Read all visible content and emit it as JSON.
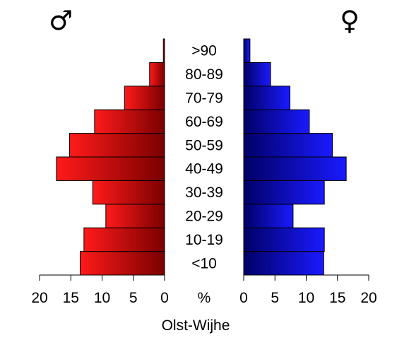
{
  "chart_data": {
    "type": "bar",
    "orientation": "horizontal-population-pyramid",
    "title": "",
    "xlabel": "Olst-Wijhe",
    "axis_unit_label": "%",
    "left_symbol": "♂",
    "right_symbol": "♀",
    "categories": [
      "<10",
      "10-19",
      "20-29",
      "30-39",
      "40-49",
      "50-59",
      "60-69",
      "70-79",
      "80-89",
      ">90"
    ],
    "series": [
      {
        "side": "left",
        "values": [
          13.5,
          12.9,
          9.4,
          11.5,
          17.3,
          15.2,
          11.2,
          6.4,
          2.4,
          0.2
        ],
        "color_light": "#ff1a1a",
        "color_dark": "#7a0000"
      },
      {
        "side": "right",
        "values": [
          12.8,
          12.9,
          7.9,
          12.9,
          16.4,
          14.2,
          10.5,
          7.4,
          4.3,
          1.0
        ],
        "color_light": "#1a1aff",
        "color_dark": "#000066"
      }
    ],
    "xlim": [
      0,
      20
    ],
    "xticks": [
      "20",
      "15",
      "10",
      "5",
      "0"
    ],
    "xticks_right": [
      "0",
      "5",
      "10",
      "15",
      "20"
    ],
    "grid": false,
    "legend": "none"
  }
}
